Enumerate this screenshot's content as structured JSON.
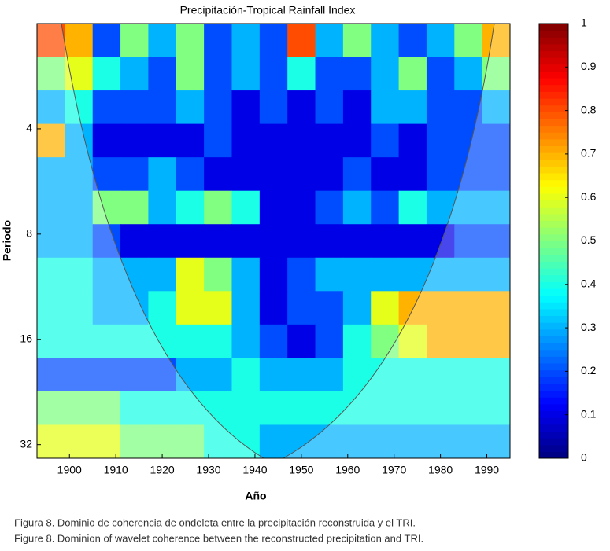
{
  "chart_data": {
    "type": "heatmap",
    "title": "Precipitación-Tropical  Rainfall Index",
    "xlabel": "Año",
    "ylabel": "Periodo",
    "colormap": "jet",
    "ylog": true,
    "yinvert": true,
    "xlim": [
      1893,
      1995
    ],
    "xticks": [
      1900,
      1910,
      1920,
      1930,
      1940,
      1950,
      1960,
      1970,
      1980,
      1990
    ],
    "ylim": [
      2,
      35
    ],
    "yticks": [
      4,
      8,
      16,
      32
    ],
    "clim": [
      0,
      1
    ],
    "cticks": [
      0,
      0.1,
      0.2,
      0.3,
      0.4,
      0.5,
      0.6,
      0.7,
      0.8,
      0.9,
      1
    ],
    "x": [
      1896,
      1902,
      1908,
      1914,
      1920,
      1926,
      1932,
      1938,
      1944,
      1950,
      1956,
      1962,
      1968,
      1974,
      1980,
      1986,
      1992
    ],
    "y": [
      2.23,
      2.78,
      3.47,
      4.32,
      5.38,
      6.71,
      8.37,
      10.43,
      12.99,
      16.19,
      20.18,
      25.14,
      31.33
    ],
    "z": [
      [
        0.8,
        0.7,
        0.2,
        0.5,
        0.3,
        0.5,
        0.2,
        0.3,
        0.2,
        0.8,
        0.3,
        0.5,
        0.3,
        0.2,
        0.3,
        0.5,
        0.7
      ],
      [
        0.5,
        0.6,
        0.4,
        0.3,
        0.2,
        0.5,
        0.2,
        0.3,
        0.2,
        0.4,
        0.2,
        0.2,
        0.3,
        0.5,
        0.2,
        0.3,
        0.5
      ],
      [
        0.3,
        0.4,
        0.2,
        0.2,
        0.2,
        0.3,
        0.2,
        0.1,
        0.2,
        0.1,
        0.2,
        0.1,
        0.3,
        0.3,
        0.2,
        0.2,
        0.3
      ],
      [
        0.7,
        0.3,
        0.1,
        0.1,
        0.1,
        0.1,
        0.2,
        0.1,
        0.1,
        0.1,
        0.1,
        0.1,
        0.2,
        0.1,
        0.2,
        0.2,
        0.2
      ],
      [
        0.3,
        0.3,
        0.2,
        0.2,
        0.3,
        0.2,
        0.1,
        0.1,
        0.1,
        0.1,
        0.1,
        0.2,
        0.1,
        0.1,
        0.2,
        0.2,
        0.2
      ],
      [
        0.3,
        0.3,
        0.5,
        0.5,
        0.3,
        0.4,
        0.5,
        0.4,
        0.1,
        0.1,
        0.2,
        0.3,
        0.2,
        0.4,
        0.3,
        0.3,
        0.3
      ],
      [
        0.3,
        0.3,
        0.2,
        0.1,
        0.1,
        0.1,
        0.1,
        0.1,
        0.1,
        0.1,
        0.1,
        0.1,
        0.1,
        0.1,
        0.1,
        0.2,
        0.2
      ],
      [
        0.4,
        0.4,
        0.3,
        0.3,
        0.3,
        0.6,
        0.5,
        0.3,
        0.1,
        0.2,
        0.3,
        0.3,
        0.3,
        0.3,
        0.3,
        0.3,
        0.3
      ],
      [
        0.4,
        0.4,
        0.3,
        0.3,
        0.4,
        0.6,
        0.6,
        0.3,
        0.1,
        0.2,
        0.2,
        0.3,
        0.6,
        0.7,
        0.7,
        0.7,
        0.7
      ],
      [
        0.4,
        0.4,
        0.4,
        0.4,
        0.4,
        0.4,
        0.4,
        0.3,
        0.2,
        0.1,
        0.2,
        0.4,
        0.5,
        0.6,
        0.7,
        0.7,
        0.7
      ],
      [
        0.2,
        0.2,
        0.2,
        0.2,
        0.2,
        0.3,
        0.3,
        0.4,
        0.3,
        0.3,
        0.3,
        0.4,
        0.4,
        0.4,
        0.4,
        0.4,
        0.4
      ],
      [
        0.5,
        0.5,
        0.5,
        0.4,
        0.4,
        0.4,
        0.4,
        0.4,
        0.4,
        0.4,
        0.4,
        0.4,
        0.4,
        0.4,
        0.4,
        0.4,
        0.4
      ],
      [
        0.6,
        0.6,
        0.6,
        0.5,
        0.5,
        0.5,
        0.4,
        0.4,
        0.3,
        0.3,
        0.3,
        0.3,
        0.3,
        0.3,
        0.3,
        0.3,
        0.3
      ]
    ]
  },
  "caption": [
    "Figura 8. Dominio de coherencia de ondeleta entre la precipitación reconstruida y el TRI.",
    "Figure 8. Dominion of wavelet coherence between the reconstructed precipitation and TRI."
  ]
}
